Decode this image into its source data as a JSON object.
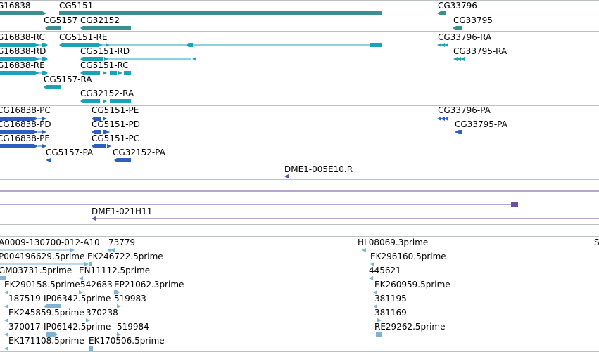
{
  "colors": {
    "gene": "#3a8f8f",
    "mrna": "#1aa3b8",
    "protein": "#2d5fbf",
    "probe": "#6a4fa8",
    "est": "#7fb3d5",
    "separator": "#b9c1c9"
  },
  "gene_track": {
    "labels": [
      "G16838",
      "CG5151",
      "CG5157",
      "CG32152",
      "CG33796",
      "CG33795"
    ]
  },
  "mrna_track": {
    "labels": [
      "G16838-RC",
      "CG5151-RE",
      "G16838-RD",
      "CG5151-RD",
      "G16838-RE",
      "CG5151-RC",
      "CG5157-RA",
      "CG32152-RA",
      "CG33796-RA",
      "CG33795-RA"
    ]
  },
  "protein_track": {
    "labels": [
      "CG16838-PC",
      "CG5151-PE",
      "CG16838-PD",
      "CG5151-PD",
      "CG16838-PE",
      "CG5151-PC",
      "CG5157-PA",
      "CG32152-PA",
      "CG33796-PA",
      "CG33795-PA"
    ]
  },
  "probe_track": {
    "labels": [
      "DME1-005E10.R",
      "DME1-021H11"
    ]
  },
  "est_track": {
    "labels": [
      "A0009-130700-012-A10",
      "73779",
      "P004196629.5prime",
      "EK246722.5prime",
      "GM03731.5prime",
      "EN11112.5prime",
      "EK290158.5prime",
      "542683",
      "EP21062.3prime",
      "187519",
      "IP06342.5prime",
      "519983",
      "EK245859.5prime",
      "370238",
      "370017",
      "IP06142.5prime",
      "519984",
      "EK171108.5prime",
      "EK170506.5prime",
      "HL08069.3prime",
      "EK296160.5prime",
      "445621",
      "EK260959.5prime",
      "381195",
      "381169",
      "RE29262.5prime",
      "S"
    ]
  }
}
